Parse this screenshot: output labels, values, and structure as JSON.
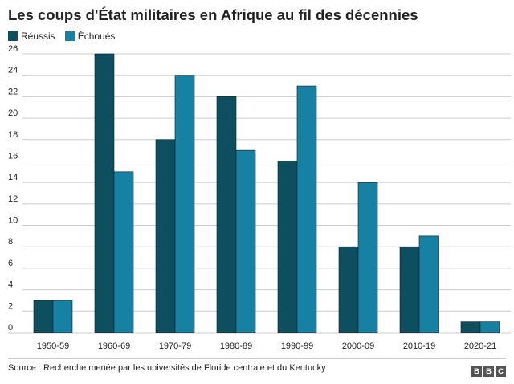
{
  "title": "Les coups d'État militaires en Afrique au fil des décennies",
  "source": "Source : Recherche menée par les universités de Floride centrale et du Kentucky",
  "logo": [
    "B",
    "B",
    "C"
  ],
  "colors": {
    "reussis": "#0d4f5f",
    "echoues": "#1781a4",
    "grid": "#cccccc",
    "axis": "#333333"
  },
  "chart_data": {
    "type": "bar",
    "title": "Les coups d'État militaires en Afrique au fil des décennies",
    "xlabel": "",
    "ylabel": "",
    "categories": [
      "1950-59",
      "1960-69",
      "1970-79",
      "1980-89",
      "1990-99",
      "2000-09",
      "2010-19",
      "2020-21"
    ],
    "series": [
      {
        "name": "Réussis",
        "values": [
          3,
          26,
          18,
          22,
          16,
          8,
          8,
          1
        ]
      },
      {
        "name": "Échoués",
        "values": [
          3,
          15,
          24,
          17,
          23,
          14,
          9,
          1
        ]
      }
    ],
    "ylim": [
      0,
      26
    ],
    "yticks": [
      0,
      2,
      4,
      6,
      8,
      10,
      12,
      14,
      16,
      18,
      20,
      22,
      24,
      26
    ],
    "grid": true,
    "legend_position": "top-left"
  }
}
